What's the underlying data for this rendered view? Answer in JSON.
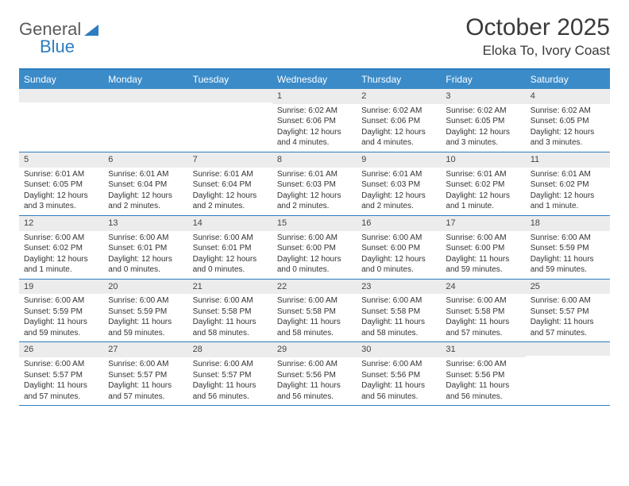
{
  "logo": {
    "word1": "General",
    "word2": "Blue"
  },
  "title": "October 2025",
  "location": "Eloka To, Ivory Coast",
  "colors": {
    "header_bg": "#3b8bc9",
    "header_border": "#2d7dc0",
    "daynum_bg": "#ececec",
    "text": "#333333"
  },
  "dayNames": [
    "Sunday",
    "Monday",
    "Tuesday",
    "Wednesday",
    "Thursday",
    "Friday",
    "Saturday"
  ],
  "weeks": [
    [
      {
        "n": "",
        "sr": "",
        "ss": "",
        "dl": ""
      },
      {
        "n": "",
        "sr": "",
        "ss": "",
        "dl": ""
      },
      {
        "n": "",
        "sr": "",
        "ss": "",
        "dl": ""
      },
      {
        "n": "1",
        "sr": "Sunrise: 6:02 AM",
        "ss": "Sunset: 6:06 PM",
        "dl": "Daylight: 12 hours and 4 minutes."
      },
      {
        "n": "2",
        "sr": "Sunrise: 6:02 AM",
        "ss": "Sunset: 6:06 PM",
        "dl": "Daylight: 12 hours and 4 minutes."
      },
      {
        "n": "3",
        "sr": "Sunrise: 6:02 AM",
        "ss": "Sunset: 6:05 PM",
        "dl": "Daylight: 12 hours and 3 minutes."
      },
      {
        "n": "4",
        "sr": "Sunrise: 6:02 AM",
        "ss": "Sunset: 6:05 PM",
        "dl": "Daylight: 12 hours and 3 minutes."
      }
    ],
    [
      {
        "n": "5",
        "sr": "Sunrise: 6:01 AM",
        "ss": "Sunset: 6:05 PM",
        "dl": "Daylight: 12 hours and 3 minutes."
      },
      {
        "n": "6",
        "sr": "Sunrise: 6:01 AM",
        "ss": "Sunset: 6:04 PM",
        "dl": "Daylight: 12 hours and 2 minutes."
      },
      {
        "n": "7",
        "sr": "Sunrise: 6:01 AM",
        "ss": "Sunset: 6:04 PM",
        "dl": "Daylight: 12 hours and 2 minutes."
      },
      {
        "n": "8",
        "sr": "Sunrise: 6:01 AM",
        "ss": "Sunset: 6:03 PM",
        "dl": "Daylight: 12 hours and 2 minutes."
      },
      {
        "n": "9",
        "sr": "Sunrise: 6:01 AM",
        "ss": "Sunset: 6:03 PM",
        "dl": "Daylight: 12 hours and 2 minutes."
      },
      {
        "n": "10",
        "sr": "Sunrise: 6:01 AM",
        "ss": "Sunset: 6:02 PM",
        "dl": "Daylight: 12 hours and 1 minute."
      },
      {
        "n": "11",
        "sr": "Sunrise: 6:01 AM",
        "ss": "Sunset: 6:02 PM",
        "dl": "Daylight: 12 hours and 1 minute."
      }
    ],
    [
      {
        "n": "12",
        "sr": "Sunrise: 6:00 AM",
        "ss": "Sunset: 6:02 PM",
        "dl": "Daylight: 12 hours and 1 minute."
      },
      {
        "n": "13",
        "sr": "Sunrise: 6:00 AM",
        "ss": "Sunset: 6:01 PM",
        "dl": "Daylight: 12 hours and 0 minutes."
      },
      {
        "n": "14",
        "sr": "Sunrise: 6:00 AM",
        "ss": "Sunset: 6:01 PM",
        "dl": "Daylight: 12 hours and 0 minutes."
      },
      {
        "n": "15",
        "sr": "Sunrise: 6:00 AM",
        "ss": "Sunset: 6:00 PM",
        "dl": "Daylight: 12 hours and 0 minutes."
      },
      {
        "n": "16",
        "sr": "Sunrise: 6:00 AM",
        "ss": "Sunset: 6:00 PM",
        "dl": "Daylight: 12 hours and 0 minutes."
      },
      {
        "n": "17",
        "sr": "Sunrise: 6:00 AM",
        "ss": "Sunset: 6:00 PM",
        "dl": "Daylight: 11 hours and 59 minutes."
      },
      {
        "n": "18",
        "sr": "Sunrise: 6:00 AM",
        "ss": "Sunset: 5:59 PM",
        "dl": "Daylight: 11 hours and 59 minutes."
      }
    ],
    [
      {
        "n": "19",
        "sr": "Sunrise: 6:00 AM",
        "ss": "Sunset: 5:59 PM",
        "dl": "Daylight: 11 hours and 59 minutes."
      },
      {
        "n": "20",
        "sr": "Sunrise: 6:00 AM",
        "ss": "Sunset: 5:59 PM",
        "dl": "Daylight: 11 hours and 59 minutes."
      },
      {
        "n": "21",
        "sr": "Sunrise: 6:00 AM",
        "ss": "Sunset: 5:58 PM",
        "dl": "Daylight: 11 hours and 58 minutes."
      },
      {
        "n": "22",
        "sr": "Sunrise: 6:00 AM",
        "ss": "Sunset: 5:58 PM",
        "dl": "Daylight: 11 hours and 58 minutes."
      },
      {
        "n": "23",
        "sr": "Sunrise: 6:00 AM",
        "ss": "Sunset: 5:58 PM",
        "dl": "Daylight: 11 hours and 58 minutes."
      },
      {
        "n": "24",
        "sr": "Sunrise: 6:00 AM",
        "ss": "Sunset: 5:58 PM",
        "dl": "Daylight: 11 hours and 57 minutes."
      },
      {
        "n": "25",
        "sr": "Sunrise: 6:00 AM",
        "ss": "Sunset: 5:57 PM",
        "dl": "Daylight: 11 hours and 57 minutes."
      }
    ],
    [
      {
        "n": "26",
        "sr": "Sunrise: 6:00 AM",
        "ss": "Sunset: 5:57 PM",
        "dl": "Daylight: 11 hours and 57 minutes."
      },
      {
        "n": "27",
        "sr": "Sunrise: 6:00 AM",
        "ss": "Sunset: 5:57 PM",
        "dl": "Daylight: 11 hours and 57 minutes."
      },
      {
        "n": "28",
        "sr": "Sunrise: 6:00 AM",
        "ss": "Sunset: 5:57 PM",
        "dl": "Daylight: 11 hours and 56 minutes."
      },
      {
        "n": "29",
        "sr": "Sunrise: 6:00 AM",
        "ss": "Sunset: 5:56 PM",
        "dl": "Daylight: 11 hours and 56 minutes."
      },
      {
        "n": "30",
        "sr": "Sunrise: 6:00 AM",
        "ss": "Sunset: 5:56 PM",
        "dl": "Daylight: 11 hours and 56 minutes."
      },
      {
        "n": "31",
        "sr": "Sunrise: 6:00 AM",
        "ss": "Sunset: 5:56 PM",
        "dl": "Daylight: 11 hours and 56 minutes."
      },
      {
        "n": "",
        "sr": "",
        "ss": "",
        "dl": ""
      }
    ]
  ]
}
